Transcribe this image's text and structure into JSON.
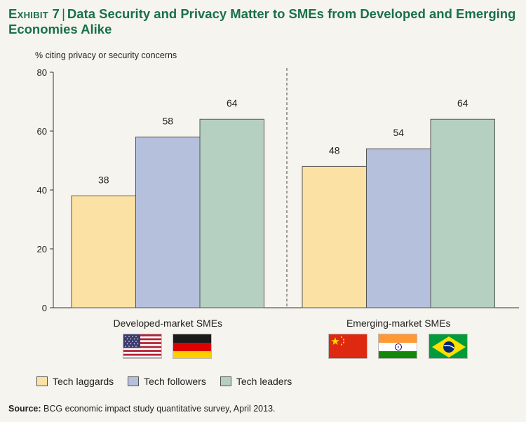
{
  "title": {
    "exhibit": "Exhibit 7",
    "separator": "|",
    "text": "Data Security and Privacy Matter to SMEs from Developed and Emerging Economies Alike"
  },
  "source": {
    "label": "Source:",
    "text": "BCG economic impact study quantitative survey, April 2013."
  },
  "flags": {
    "developed": [
      "us-flag",
      "germany-flag"
    ],
    "emerging": [
      "china-flag",
      "india-flag",
      "brazil-flag"
    ]
  },
  "colors": {
    "laggards": "#fbe1a3",
    "followers": "#b5c0dd",
    "leaders": "#b5d0c1",
    "title": "#1a7049"
  },
  "chart_data": {
    "type": "bar",
    "title": "Data Security and Privacy Matter to SMEs from Developed and Emerging Economies Alike",
    "ylabel": "% citing privacy or security concerns",
    "xlabel": "",
    "ylim": [
      0,
      80
    ],
    "yticks": [
      0,
      20,
      40,
      60,
      80
    ],
    "categories": [
      "Developed-market SMEs",
      "Emerging-market SMEs"
    ],
    "series": [
      {
        "name": "Tech laggards",
        "values": [
          38,
          48
        ]
      },
      {
        "name": "Tech followers",
        "values": [
          58,
          54
        ]
      },
      {
        "name": "Tech leaders",
        "values": [
          64,
          64
        ]
      }
    ],
    "legend_position": "bottom-left"
  }
}
